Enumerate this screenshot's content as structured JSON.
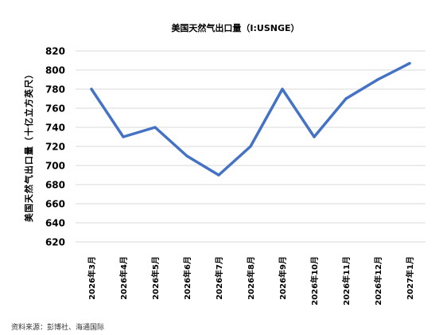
{
  "chart_data": {
    "type": "line",
    "title": "美国天然气出口量（I:USNGE）",
    "xlabel": "",
    "ylabel": "美国天然气出口量（十亿立方英尺）",
    "categories": [
      "2026年3月",
      "2026年4月",
      "2026年5月",
      "2026年6月",
      "2026年7月",
      "2026年8月",
      "2026年9月",
      "2026年10月",
      "2026年11月",
      "2026年12月",
      "2027年1月"
    ],
    "series": [
      {
        "values": [
          780,
          730,
          740,
          710,
          690,
          720,
          780,
          730,
          770,
          790,
          807
        ]
      }
    ],
    "yticks": [
      620,
      640,
      660,
      680,
      700,
      720,
      740,
      760,
      780,
      800,
      820
    ],
    "ylim": [
      620,
      820
    ],
    "grid": "horizontal",
    "legend": "none",
    "line_color": "#4472c4",
    "grid_color": "#d9d9d9"
  },
  "footer": {
    "source": "资料来源：彭博社、海通国际"
  }
}
